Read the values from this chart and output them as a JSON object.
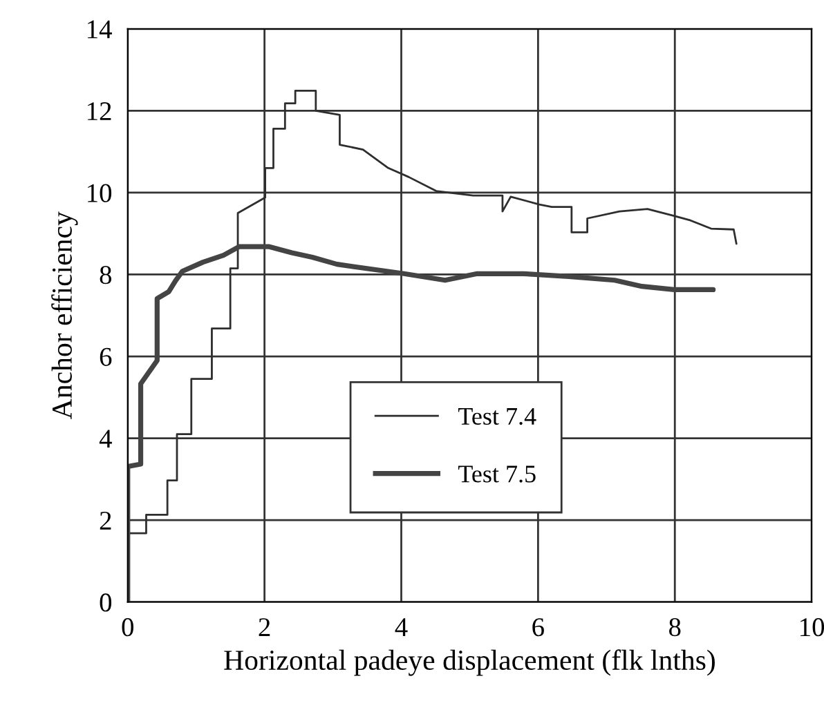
{
  "chart_data": {
    "type": "line",
    "xlabel": "Horizontal padeye displacement (flk lnths)",
    "ylabel": "Anchor efficiency",
    "xlim": [
      0,
      10
    ],
    "xticks": [
      0,
      2,
      4,
      6,
      8,
      10
    ],
    "ylim": [
      0,
      14
    ],
    "yticks": [
      0,
      2,
      4,
      6,
      8,
      10,
      12,
      14
    ],
    "grid": true,
    "legend": "center",
    "marker": "none",
    "line_style": "solid",
    "series": [
      {
        "name": "Test 7.4",
        "color": "#2e2e2e",
        "x": [
          0.0,
          0.0,
          0.27,
          0.27,
          0.58,
          0.58,
          0.72,
          0.72,
          0.93,
          0.93,
          1.23,
          1.23,
          1.5,
          1.5,
          1.61,
          1.61,
          2.01,
          2.01,
          2.13,
          2.13,
          2.3,
          2.3,
          2.45,
          2.45,
          2.75,
          2.75,
          3.1,
          3.1,
          3.44,
          3.81,
          4.11,
          4.51,
          5.05,
          5.48,
          5.48,
          5.6,
          6.02,
          6.2,
          6.49,
          6.49,
          6.72,
          6.72,
          7.19,
          7.6,
          7.99,
          8.23,
          8.53,
          8.86,
          8.9
        ],
        "values": [
          0,
          1.68,
          1.68,
          2.13,
          2.13,
          2.97,
          2.97,
          4.1,
          4.1,
          5.45,
          5.45,
          6.68,
          6.68,
          8.15,
          8.15,
          9.5,
          9.88,
          10.6,
          10.6,
          11.56,
          11.56,
          12.18,
          12.18,
          12.49,
          12.49,
          12.0,
          11.9,
          11.17,
          11.05,
          10.6,
          10.38,
          10.04,
          9.93,
          9.93,
          9.54,
          9.9,
          9.71,
          9.65,
          9.65,
          9.03,
          9.03,
          9.37,
          9.54,
          9.6,
          9.43,
          9.32,
          9.12,
          9.1,
          8.75
        ]
      },
      {
        "name": "Test 7.5",
        "color": "#444444",
        "x": [
          0.0,
          0.0,
          0.0,
          0.19,
          0.19,
          0.43,
          0.43,
          0.6,
          0.7,
          0.8,
          1.1,
          1.4,
          1.63,
          2.07,
          2.4,
          2.7,
          3.06,
          4.04,
          4.64,
          5.11,
          5.78,
          6.45,
          7.12,
          7.52,
          7.99,
          8.56
        ],
        "values": [
          0,
          1.29,
          3.31,
          3.37,
          5.33,
          5.9,
          7.41,
          7.58,
          7.85,
          8.08,
          8.3,
          8.47,
          8.68,
          8.68,
          8.53,
          8.42,
          8.25,
          8.02,
          7.86,
          8.02,
          8.02,
          7.95,
          7.86,
          7.71,
          7.63,
          7.63
        ]
      }
    ]
  }
}
